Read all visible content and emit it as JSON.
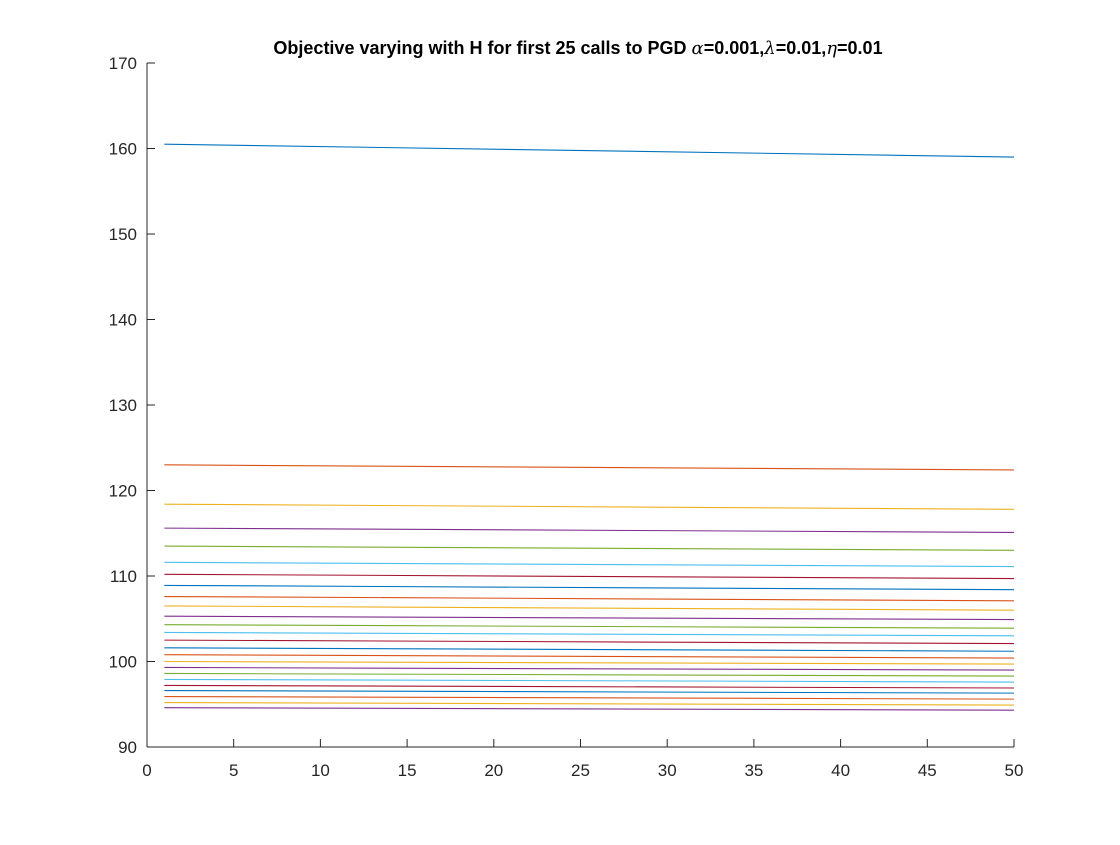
{
  "chart_data": {
    "type": "line",
    "title_parts": [
      {
        "text": "Objective varying with H for first 25 calls to PGD ",
        "greek": false
      },
      {
        "text": "α",
        "greek": true
      },
      {
        "text": "=0.001,",
        "greek": false
      },
      {
        "text": "λ",
        "greek": true
      },
      {
        "text": "=0.01,",
        "greek": false
      },
      {
        "text": "η",
        "greek": true
      },
      {
        "text": "=0.01",
        "greek": false
      }
    ],
    "xlabel": "",
    "ylabel": "",
    "xlim": [
      0,
      50
    ],
    "ylim": [
      90,
      170
    ],
    "x_ticks": [
      0,
      5,
      10,
      15,
      20,
      25,
      30,
      35,
      40,
      45,
      50
    ],
    "y_ticks": [
      90,
      100,
      110,
      120,
      130,
      140,
      150,
      160,
      170
    ],
    "x_range": [
      1,
      50
    ],
    "grid": false,
    "legend": "none",
    "series": [
      {
        "color": "#0072BD",
        "start": 160.5,
        "end": 159.0
      },
      {
        "color": "#D95319",
        "start": 123.0,
        "end": 122.4
      },
      {
        "color": "#EDB120",
        "start": 118.4,
        "end": 117.8
      },
      {
        "color": "#7E2F8E",
        "start": 115.6,
        "end": 115.1
      },
      {
        "color": "#77AC30",
        "start": 113.5,
        "end": 113.0
      },
      {
        "color": "#4DBEEE",
        "start": 111.6,
        "end": 111.1
      },
      {
        "color": "#A2142F",
        "start": 110.2,
        "end": 109.7
      },
      {
        "color": "#0072BD",
        "start": 108.9,
        "end": 108.4
      },
      {
        "color": "#D95319",
        "start": 107.6,
        "end": 107.1
      },
      {
        "color": "#EDB120",
        "start": 106.5,
        "end": 106.0
      },
      {
        "color": "#7E2F8E",
        "start": 105.3,
        "end": 104.9
      },
      {
        "color": "#77AC30",
        "start": 104.3,
        "end": 103.9
      },
      {
        "color": "#4DBEEE",
        "start": 103.4,
        "end": 103.0
      },
      {
        "color": "#A2142F",
        "start": 102.5,
        "end": 102.1
      },
      {
        "color": "#0072BD",
        "start": 101.6,
        "end": 101.2
      },
      {
        "color": "#D95319",
        "start": 100.8,
        "end": 100.4
      },
      {
        "color": "#EDB120",
        "start": 100.0,
        "end": 99.7
      },
      {
        "color": "#7E2F8E",
        "start": 99.3,
        "end": 99.0
      },
      {
        "color": "#77AC30",
        "start": 98.6,
        "end": 98.3
      },
      {
        "color": "#4DBEEE",
        "start": 97.9,
        "end": 97.6
      },
      {
        "color": "#A2142F",
        "start": 97.2,
        "end": 96.9
      },
      {
        "color": "#0072BD",
        "start": 96.6,
        "end": 96.3
      },
      {
        "color": "#D95319",
        "start": 95.9,
        "end": 95.6
      },
      {
        "color": "#EDB120",
        "start": 95.2,
        "end": 94.9
      },
      {
        "color": "#7E2F8E",
        "start": 94.6,
        "end": 94.3
      }
    ]
  }
}
